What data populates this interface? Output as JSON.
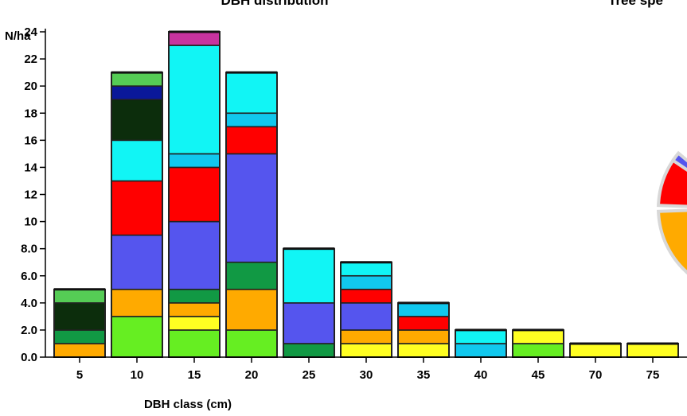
{
  "chart_data": [
    {
      "type": "bar",
      "stacked": true,
      "title": "DBH distribution",
      "xlabel": "DBH class (cm)",
      "ylabel": "N/ha",
      "ylim": [
        0,
        24
      ],
      "yticks": [
        "0.0",
        "2.0",
        "4.0",
        "6.0",
        "8.0",
        "10",
        "12",
        "14",
        "16",
        "18",
        "20",
        "22",
        "24"
      ],
      "categories": [
        "5",
        "10",
        "15",
        "20",
        "25",
        "30",
        "35",
        "40",
        "45",
        "70",
        "75"
      ],
      "series_colors": {
        "lime": "#66ee22",
        "yellow": "#ffff22",
        "orange": "#ffaa00",
        "green": "#119944",
        "dark_green": "#0c2d0c",
        "blue_violet": "#5555ee",
        "red": "#ff0000",
        "sky": "#11c8ee",
        "cyan": "#11f5f5",
        "navy": "#0a1899",
        "light_green": "#55cc55",
        "magenta": "#c8339f"
      },
      "stacks": [
        [
          {
            "color": "orange",
            "value": 1
          },
          {
            "color": "green",
            "value": 1
          },
          {
            "color": "dark_green",
            "value": 2
          },
          {
            "color": "light_green",
            "value": 1
          }
        ],
        [
          {
            "color": "lime",
            "value": 3
          },
          {
            "color": "orange",
            "value": 2
          },
          {
            "color": "blue_violet",
            "value": 4
          },
          {
            "color": "red",
            "value": 4
          },
          {
            "color": "cyan",
            "value": 3
          },
          {
            "color": "dark_green",
            "value": 3
          },
          {
            "color": "navy",
            "value": 1
          },
          {
            "color": "light_green",
            "value": 1
          }
        ],
        [
          {
            "color": "lime",
            "value": 2
          },
          {
            "color": "yellow",
            "value": 1
          },
          {
            "color": "orange",
            "value": 1
          },
          {
            "color": "green",
            "value": 1
          },
          {
            "color": "blue_violet",
            "value": 5
          },
          {
            "color": "red",
            "value": 4
          },
          {
            "color": "sky",
            "value": 1
          },
          {
            "color": "cyan",
            "value": 8
          },
          {
            "color": "magenta",
            "value": 1
          }
        ],
        [
          {
            "color": "lime",
            "value": 2
          },
          {
            "color": "orange",
            "value": 3
          },
          {
            "color": "green",
            "value": 2
          },
          {
            "color": "blue_violet",
            "value": 8
          },
          {
            "color": "red",
            "value": 2
          },
          {
            "color": "sky",
            "value": 1
          },
          {
            "color": "cyan",
            "value": 3
          }
        ],
        [
          {
            "color": "green",
            "value": 1
          },
          {
            "color": "blue_violet",
            "value": 3
          },
          {
            "color": "cyan",
            "value": 4
          }
        ],
        [
          {
            "color": "yellow",
            "value": 1
          },
          {
            "color": "orange",
            "value": 1
          },
          {
            "color": "blue_violet",
            "value": 2
          },
          {
            "color": "red",
            "value": 1
          },
          {
            "color": "sky",
            "value": 1
          },
          {
            "color": "cyan",
            "value": 1
          }
        ],
        [
          {
            "color": "yellow",
            "value": 1
          },
          {
            "color": "orange",
            "value": 1
          },
          {
            "color": "red",
            "value": 1
          },
          {
            "color": "sky",
            "value": 1
          }
        ],
        [
          {
            "color": "sky",
            "value": 1
          },
          {
            "color": "cyan",
            "value": 1
          }
        ],
        [
          {
            "color": "lime",
            "value": 1
          },
          {
            "color": "yellow",
            "value": 1
          }
        ],
        [
          {
            "color": "yellow",
            "value": 1
          }
        ],
        [
          {
            "color": "yellow",
            "value": 1
          }
        ]
      ]
    },
    {
      "type": "pie",
      "title": "Tree spe",
      "partial": true,
      "visible_slice_colors": [
        "#66ee22",
        "#ffaa00",
        "#ff0000",
        "#5555ee"
      ]
    }
  ]
}
